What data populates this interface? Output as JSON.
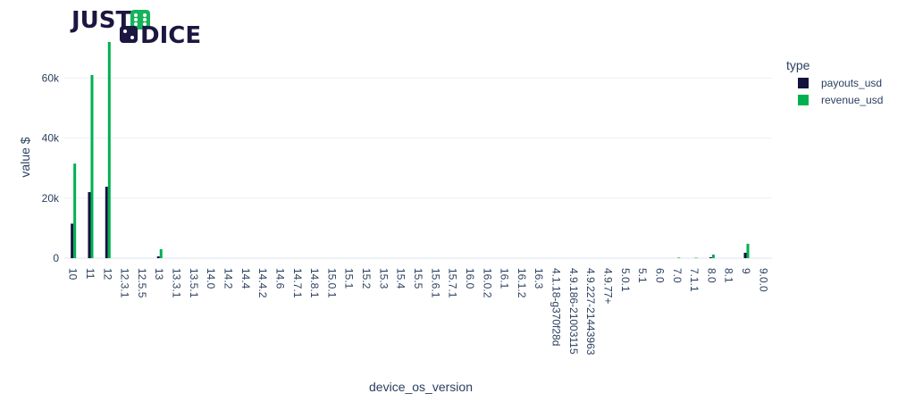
{
  "logo": {
    "text_top": "JUST",
    "text_bottom": "DICE",
    "colors": {
      "navy": "#1b1740",
      "green": "#16b45a"
    }
  },
  "chart_data": {
    "type": "bar",
    "barmode": "group",
    "title": "",
    "xlabel": "device_os_version",
    "ylabel": "value $",
    "ylim": [
      0,
      72000
    ],
    "yticks": [
      0,
      20000,
      40000,
      60000
    ],
    "ytick_labels": [
      "0",
      "20k",
      "40k",
      "60k"
    ],
    "grid": true,
    "legend": {
      "title": "type",
      "placement": "right"
    },
    "categories": [
      "10",
      "11",
      "12",
      "12.3.1",
      "12.5.5",
      "13",
      "13.3.1",
      "13.5.1",
      "14.0",
      "14.2",
      "14.4",
      "14.4.2",
      "14.6",
      "14.7.1",
      "14.8.1",
      "15.0.1",
      "15.1",
      "15.2",
      "15.3",
      "15.4",
      "15.5",
      "15.6.1",
      "15.7.1",
      "16.0",
      "16.0.2",
      "16.1",
      "16.1.2",
      "16.3",
      "4.1.18-g370f28d",
      "4.9.186-21003115",
      "4.9.227-21443963",
      "4.9.77+",
      "5.0.1",
      "5.1",
      "6.0",
      "7.0",
      "7.1.1",
      "8.0",
      "8.1",
      "9",
      "9.0.0"
    ],
    "series": [
      {
        "name": "payouts_usd",
        "color": "#15123f",
        "values": [
          11500,
          22000,
          23800,
          0,
          0,
          600,
          0,
          0,
          0,
          0,
          0,
          0,
          0,
          0,
          0,
          0,
          0,
          0,
          0,
          0,
          0,
          0,
          0,
          0,
          0,
          0,
          0,
          0,
          0,
          0,
          0,
          0,
          0,
          0,
          0,
          0,
          0,
          300,
          0,
          1800,
          0
        ]
      },
      {
        "name": "revenue_usd",
        "color": "#00b050",
        "values": [
          31500,
          61000,
          72000,
          0,
          0,
          3000,
          0,
          0,
          0,
          0,
          0,
          0,
          0,
          0,
          0,
          0,
          0,
          0,
          0,
          0,
          0,
          0,
          0,
          0,
          0,
          0,
          0,
          0,
          0,
          0,
          0,
          0,
          0,
          0,
          0,
          200,
          150,
          1200,
          0,
          4800,
          0
        ]
      }
    ]
  }
}
